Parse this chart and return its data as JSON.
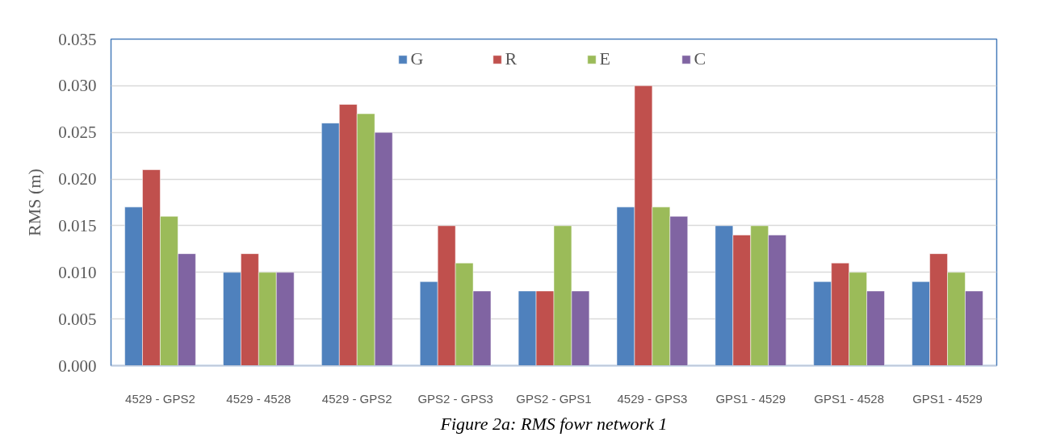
{
  "chart_data": {
    "type": "bar",
    "ylabel": "RMS (m)",
    "annotations": [
      "Figure 2a: RMS fowr network 1"
    ],
    "categories": [
      "4529 - GPS2",
      "4529 - 4528",
      "4529 - GPS2",
      "GPS2 - GPS3",
      "GPS2 - GPS1",
      "4529 - GPS3",
      "GPS1 - 4529",
      "GPS1 - 4528",
      "GPS1 - 4529"
    ],
    "series": [
      {
        "name": "G",
        "color": "#4f81bd",
        "values": [
          0.017,
          0.01,
          0.026,
          0.009,
          0.008,
          0.017,
          0.015,
          0.009,
          0.009
        ]
      },
      {
        "name": "R",
        "color": "#c0504d",
        "values": [
          0.021,
          0.012,
          0.028,
          0.015,
          0.008,
          0.03,
          0.014,
          0.011,
          0.012
        ]
      },
      {
        "name": "E",
        "color": "#9bbb59",
        "values": [
          0.016,
          0.01,
          0.027,
          0.011,
          0.015,
          0.017,
          0.015,
          0.01,
          0.01
        ]
      },
      {
        "name": "C",
        "color": "#8064a2",
        "values": [
          0.012,
          0.01,
          0.025,
          0.008,
          0.008,
          0.016,
          0.014,
          0.008,
          0.008
        ]
      }
    ],
    "ylim": [
      0,
      0.035
    ],
    "yticks": [
      {
        "value": 0,
        "label": "0.000"
      },
      {
        "value": 0.005,
        "label": "0.005"
      },
      {
        "value": 0.01,
        "label": "0.010"
      },
      {
        "value": 0.015,
        "label": "0.015"
      },
      {
        "value": 0.02,
        "label": "0.020"
      },
      {
        "value": 0.025,
        "label": "0.025"
      },
      {
        "value": 0.03,
        "label": "0.030"
      },
      {
        "value": 0.035,
        "label": "0.035"
      }
    ],
    "grid": "y",
    "legend": "top"
  }
}
